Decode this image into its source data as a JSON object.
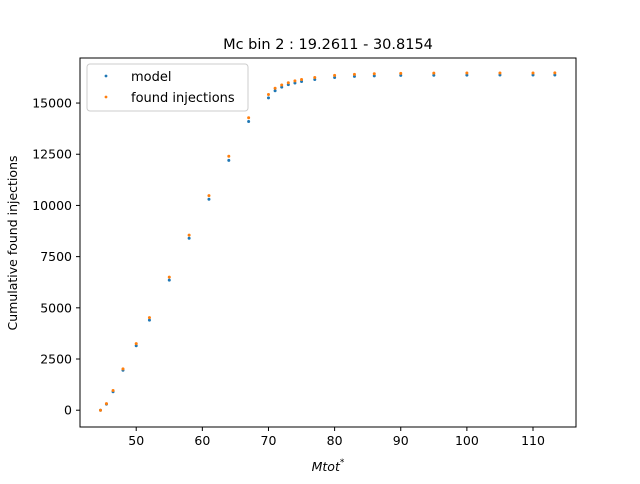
{
  "chart_data": {
    "type": "scatter",
    "title": "Mc bin 2 : 19.2611 - 30.8154",
    "xlabel": "Mtot",
    "xlabel_superscript": "*",
    "ylabel": "Cumulative found injections",
    "xlim": [
      41.5,
      116.5
    ],
    "ylim": [
      -820,
      17200
    ],
    "xticks": [
      50,
      60,
      70,
      80,
      90,
      100,
      110
    ],
    "yticks": [
      0,
      2500,
      5000,
      7500,
      10000,
      12500,
      15000
    ],
    "grid": false,
    "legend_position": "upper-left",
    "series": [
      {
        "name": "model",
        "color": "#1f77b4",
        "x": [
          44.6,
          45.5,
          46.5,
          48.0,
          50.0,
          52.0,
          55.0,
          58.0,
          61.0,
          64.0,
          67.0,
          70.0,
          71.0,
          72.0,
          73.0,
          74.0,
          75.0,
          77.0,
          80.0,
          83.0,
          86.0,
          90.0,
          95.0,
          100.0,
          105.0,
          110.0,
          113.3
        ],
        "y": [
          0,
          300,
          900,
          1950,
          3150,
          4400,
          6350,
          8400,
          10300,
          12200,
          14100,
          15250,
          15600,
          15780,
          15900,
          15980,
          16050,
          16150,
          16250,
          16300,
          16330,
          16350,
          16360,
          16365,
          16368,
          16370,
          16372
        ]
      },
      {
        "name": "found injections",
        "color": "#ff7f0e",
        "x": [
          44.6,
          45.5,
          46.5,
          48.0,
          50.0,
          52.0,
          55.0,
          58.0,
          61.0,
          64.0,
          67.0,
          70.0,
          71.0,
          72.0,
          73.0,
          74.0,
          75.0,
          77.0,
          80.0,
          83.0,
          86.0,
          90.0,
          95.0,
          100.0,
          105.0,
          110.0,
          113.3
        ],
        "y": [
          0,
          320,
          960,
          2020,
          3250,
          4520,
          6500,
          8550,
          10480,
          12400,
          14280,
          15420,
          15720,
          15880,
          15990,
          16080,
          16150,
          16250,
          16350,
          16400,
          16430,
          16450,
          16460,
          16465,
          16468,
          16470,
          16472
        ]
      }
    ]
  }
}
